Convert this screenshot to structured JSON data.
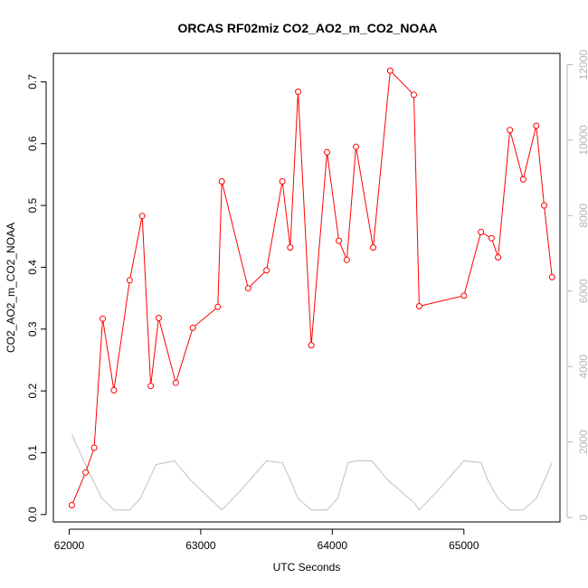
{
  "chart_data": {
    "type": "line",
    "title": "ORCAS RF02miz CO2_AO2_m_CO2_NOAA",
    "xlabel": "UTC Seconds",
    "ylabel": "CO2_AO2_m_CO2_NOAA",
    "xlim": [
      61880,
      65730
    ],
    "ylim": [
      -0.012,
      0.746
    ],
    "y2lim": [
      -120,
      12300
    ],
    "x_ticks": [
      62000,
      63000,
      64000,
      65000
    ],
    "y_ticks": [
      0.0,
      0.1,
      0.2,
      0.3,
      0.4,
      0.5,
      0.6,
      0.7
    ],
    "y2_ticks": [
      0,
      2000,
      4000,
      6000,
      8000,
      10000,
      12000
    ],
    "x_tick_labels": [
      "62000",
      "63000",
      "64000",
      "65000"
    ],
    "y_tick_labels": [
      "0.0",
      "0.1",
      "0.2",
      "0.3",
      "0.4",
      "0.5",
      "0.6",
      "0.7"
    ],
    "y2_tick_labels": [
      "0",
      "2000",
      "4000",
      "6000",
      "8000",
      "10000",
      "12000"
    ],
    "grid": false,
    "series": [
      {
        "color": "#ff0000",
        "axis": "left",
        "markers": "open-circle",
        "x": [
          62020,
          62125,
          62190,
          62255,
          62340,
          62460,
          62555,
          62620,
          62680,
          62810,
          62940,
          63130,
          63160,
          63360,
          63500,
          63620,
          63680,
          63740,
          63840,
          63960,
          64050,
          64110,
          64180,
          64310,
          64440,
          64620,
          64660,
          65000,
          65130,
          65210,
          65260,
          65350,
          65450,
          65550,
          65610,
          65670
        ],
        "y": [
          0.015,
          0.068,
          0.108,
          0.317,
          0.201,
          0.379,
          0.483,
          0.208,
          0.318,
          0.213,
          0.302,
          0.336,
          0.539,
          0.366,
          0.395,
          0.539,
          0.432,
          0.684,
          0.274,
          0.586,
          0.443,
          0.412,
          0.595,
          0.432,
          0.718,
          0.679,
          0.337,
          0.354,
          0.457,
          0.447,
          0.416,
          0.622,
          0.542,
          0.629,
          0.5,
          0.384
        ]
      },
      {
        "color": "#c0c0c0",
        "axis": "right",
        "markers": "none",
        "x": [
          62020,
          62150,
          62250,
          62340,
          62460,
          62540,
          62660,
          62800,
          62920,
          63040,
          63130,
          63160,
          63300,
          63500,
          63620,
          63680,
          63740,
          63840,
          63960,
          64040,
          64120,
          64180,
          64300,
          64420,
          64550,
          64620,
          64660,
          64800,
          65000,
          65130,
          65180,
          65260,
          65350,
          65450,
          65550,
          65670
        ],
        "y": [
          2200,
          1200,
          500,
          200,
          200,
          500,
          1400,
          1500,
          1000,
          600,
          300,
          200,
          700,
          1500,
          1450,
          1000,
          500,
          200,
          200,
          500,
          1450,
          1500,
          1500,
          1000,
          600,
          400,
          200,
          700,
          1500,
          1450,
          1000,
          500,
          200,
          200,
          500,
          1450
        ]
      }
    ]
  }
}
